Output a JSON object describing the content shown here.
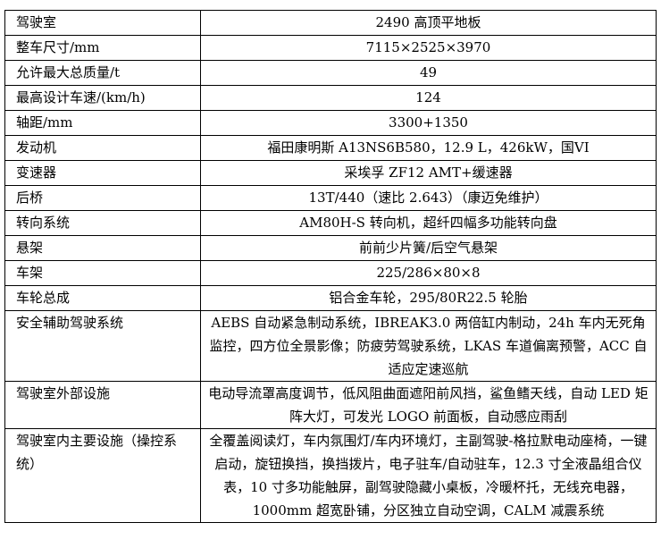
{
  "rows": [
    {
      "label": "驾驶室",
      "value": "2490 高顶平地板"
    },
    {
      "label": "整车尺寸/mm",
      "value": "7115×2525×3970"
    },
    {
      "label": "允许最大总质量/t",
      "value": "49"
    },
    {
      "label": "最高设计车速/(km/h)",
      "value": "124"
    },
    {
      "label": "轴距/mm",
      "value": "3300+1350"
    },
    {
      "label": "发动机",
      "value": "福田康明斯 A13NS6B580，12.9 L，426kW，国VI"
    },
    {
      "label": "变速器",
      "value": "采埃孚 ZF12 AMT+缓速器"
    },
    {
      "label": "后桥",
      "value": "13T/440（速比 2.643）（康迈免维护）"
    },
    {
      "label": "转向系统",
      "value": "AM80H-S 转向机，超纤四幅多功能转向盘"
    },
    {
      "label": "悬架",
      "value": "前前少片簧/后空气悬架"
    },
    {
      "label": "车架",
      "value": "225/286×80×8"
    },
    {
      "label": "车轮总成",
      "value": "铝合金车轮，295/80R22.5 轮胎"
    },
    {
      "label": "安全辅助驾驶系统",
      "value": "AEBS 自动紧急制动系统，IBREAK3.0 两倍缸内制动，24h 车内无死角监控，四方位全景影像；防疲劳驾驶系统，LKAS 车道偏离预警，ACC 自适应定速巡航"
    },
    {
      "label": "驾驶室外部设施",
      "value": "电动导流罩高度调节，低风阻曲面遮阳前风挡，鲨鱼鳍天线，自动 LED 矩阵大灯，可发光 LOGO 前面板，自动感应雨刮"
    },
    {
      "label": "驾驶室内主要设施（操控系统）",
      "value": "全覆盖阅读灯，车内氛围灯/车内环境灯，主副驾驶-格拉默电动座椅，一键启动，旋钮换挡，换挡拨片，电子驻车/自动驻车，12.3 寸全液晶组合仪表，10 寸多功能触屏，副驾驶隐藏小桌板，冷暖杯托，无线充电器，1000mm 超宽卧铺，分区独立自动空调，CALM 减震系统"
    }
  ]
}
